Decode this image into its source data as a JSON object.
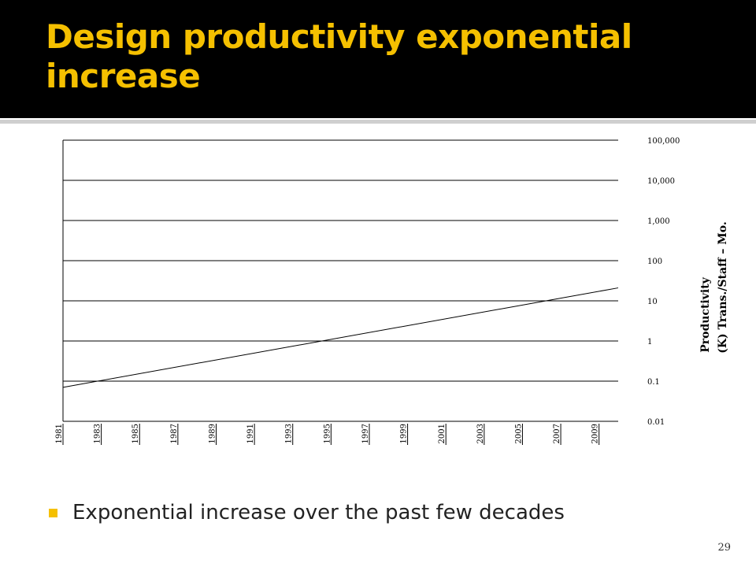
{
  "slide": {
    "title": "Design productivity exponential increase",
    "bullet": "Exponential increase over the past few decades",
    "page_number": "29",
    "accent_color": "#f5c000"
  },
  "chart_data": {
    "type": "line",
    "title": "",
    "xlabel": "",
    "ylabel_line1": "Productivity",
    "ylabel_line2": "(K) Trans./Staff – Mo.",
    "y_scale": "log",
    "ylim": [
      0.01,
      100000
    ],
    "y_ticks": [
      0.01,
      0.1,
      1,
      10,
      100,
      1000,
      10000,
      100000
    ],
    "y_tick_labels": [
      "0.01",
      "0.1",
      "1",
      "10",
      "100",
      "1,000",
      "10,000",
      "100,000"
    ],
    "x_ticks": [
      1981,
      1983,
      1985,
      1987,
      1989,
      1991,
      1993,
      1995,
      1997,
      1999,
      2001,
      2003,
      2005,
      2007,
      2009
    ],
    "x_tick_labels": [
      "1981",
      "1983",
      "1985",
      "1987",
      "1989",
      "1991",
      "1993",
      "1995",
      "1997",
      "1999",
      "2001",
      "2003",
      "2005",
      "2007",
      "2009"
    ],
    "xlim": [
      1981,
      2010
    ],
    "grid": true,
    "series": [
      {
        "x": [
          1981,
          2010
        ],
        "y": [
          0.07,
          21
        ]
      }
    ]
  }
}
